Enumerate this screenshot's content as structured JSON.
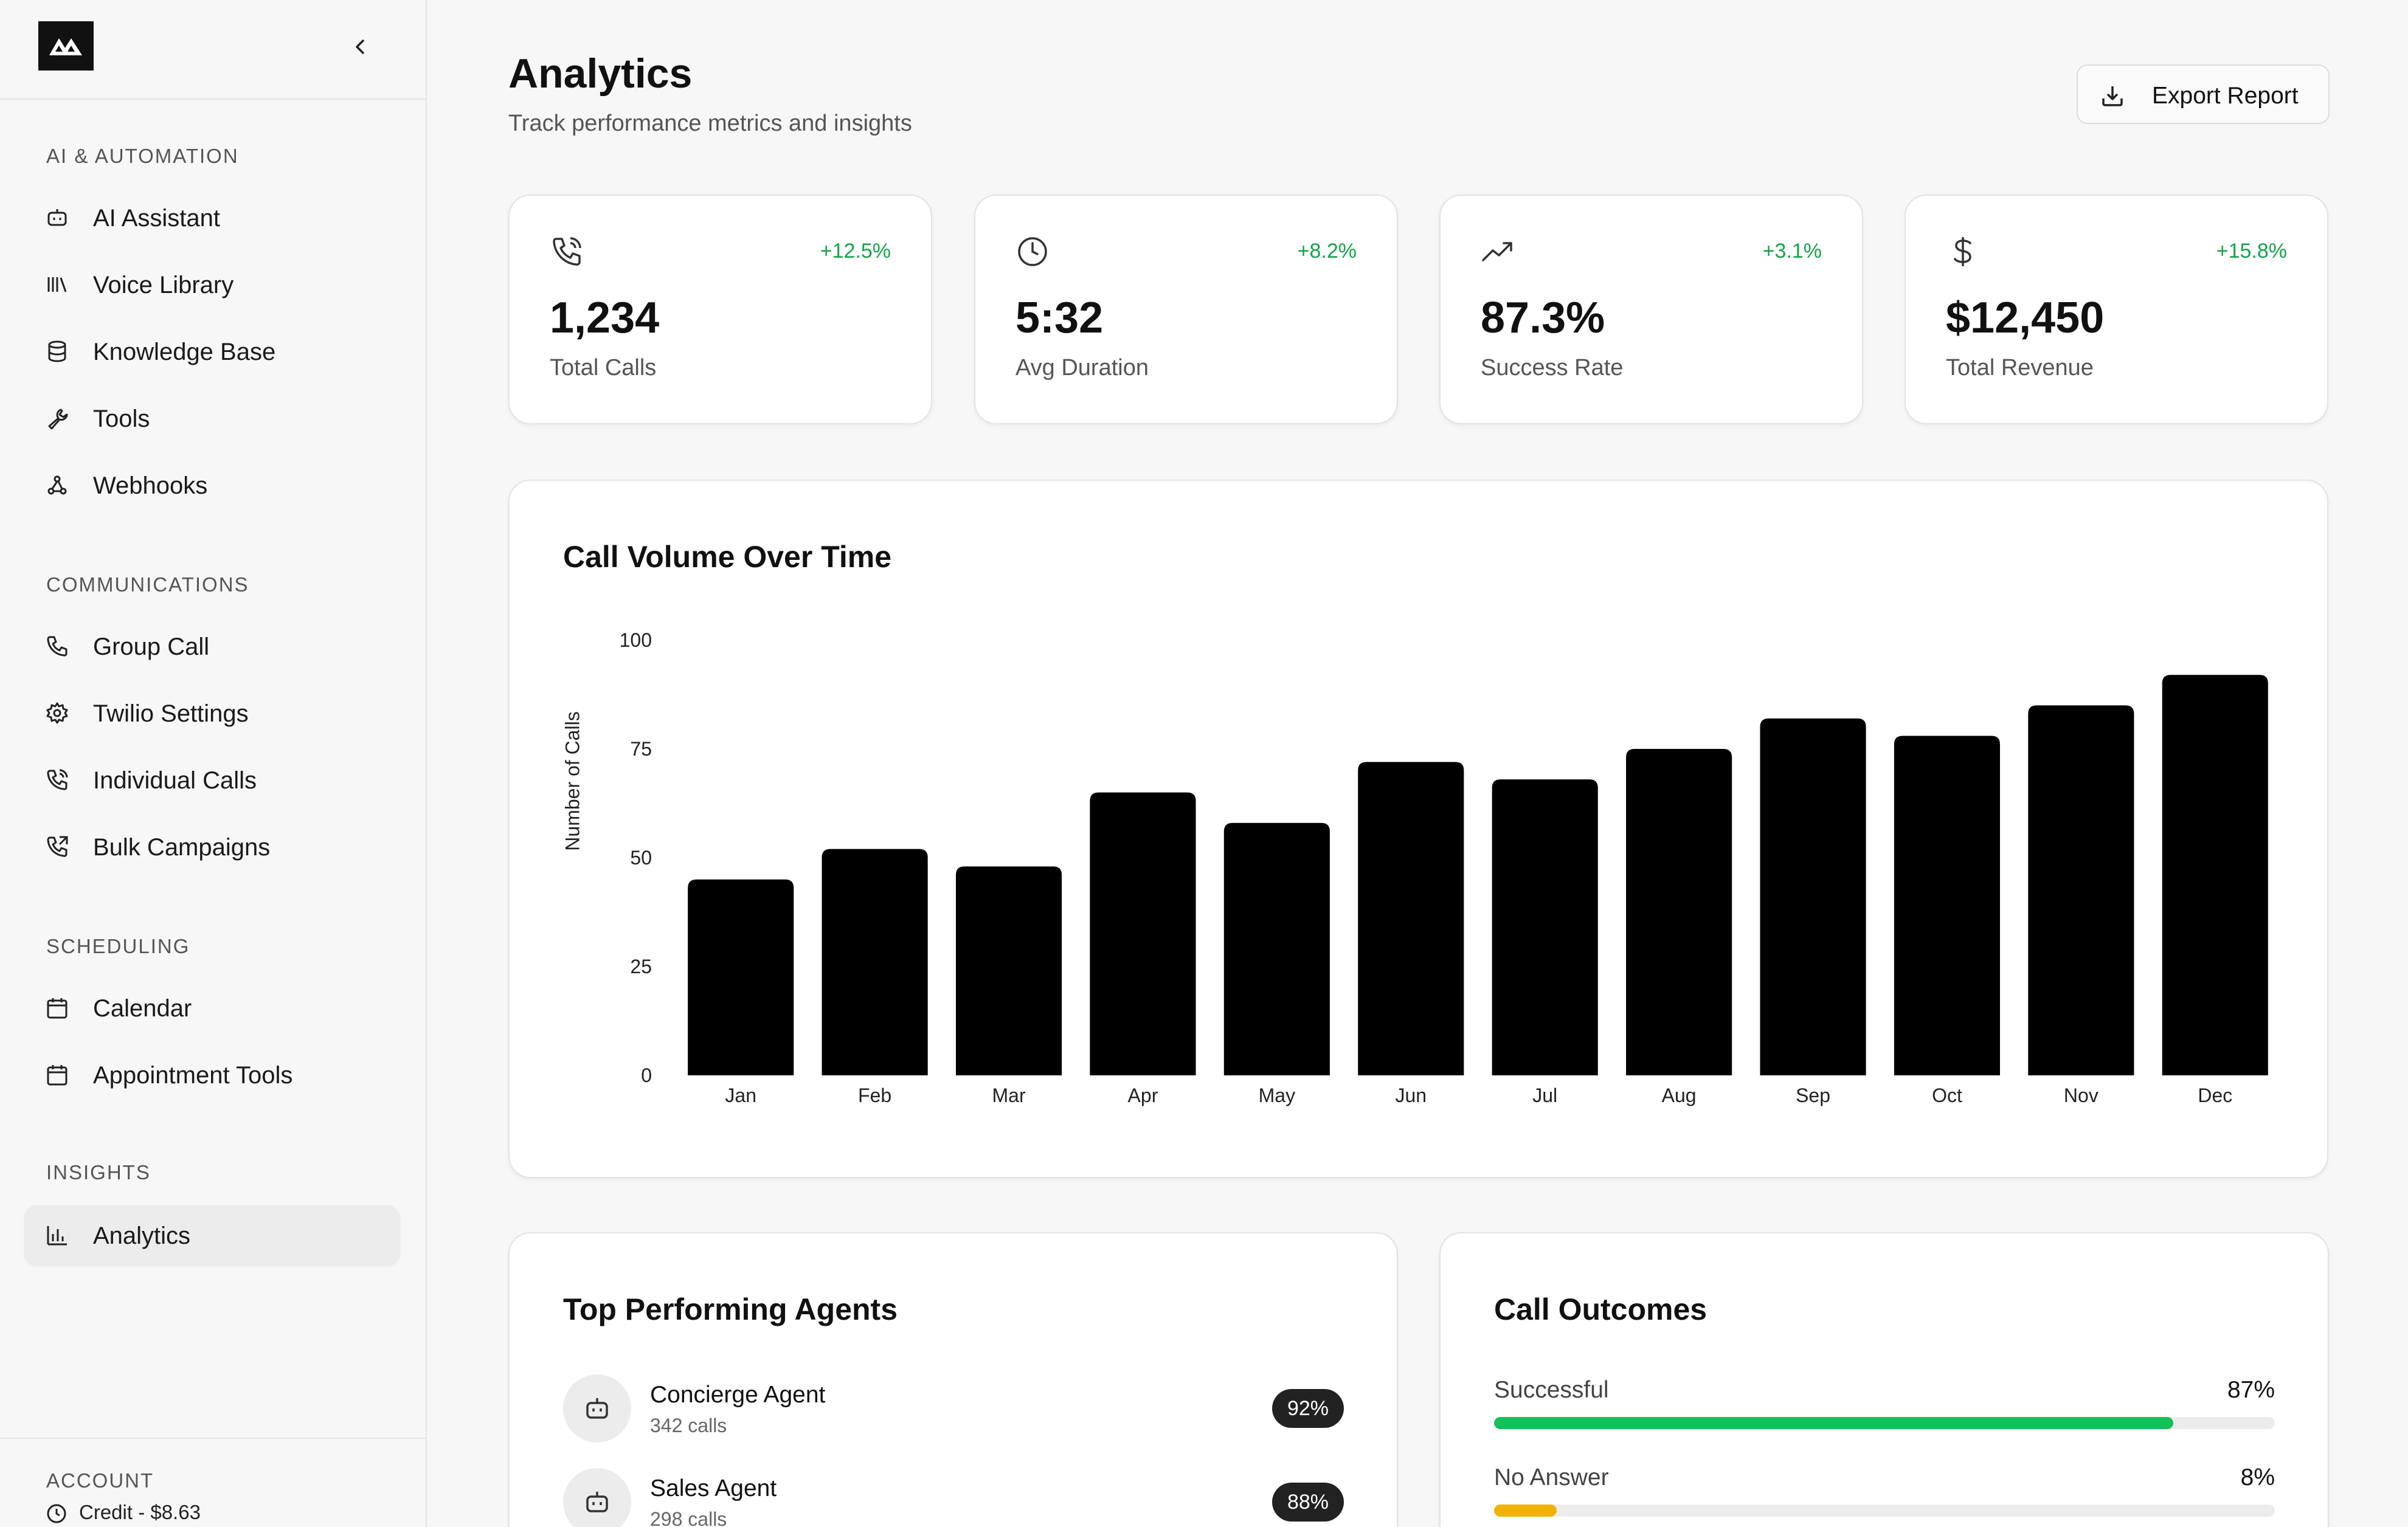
{
  "sidebar": {
    "sections": [
      {
        "title": "AI & AUTOMATION",
        "items": [
          {
            "label": "AI Assistant",
            "icon": "bot-icon"
          },
          {
            "label": "Voice Library",
            "icon": "library-icon"
          },
          {
            "label": "Knowledge Base",
            "icon": "database-icon"
          },
          {
            "label": "Tools",
            "icon": "wrench-icon"
          },
          {
            "label": "Webhooks",
            "icon": "webhook-icon"
          }
        ]
      },
      {
        "title": "COMMUNICATIONS",
        "items": [
          {
            "label": "Group Call",
            "icon": "phone-icon"
          },
          {
            "label": "Twilio Settings",
            "icon": "gear-icon"
          },
          {
            "label": "Individual Calls",
            "icon": "phone-call-icon"
          },
          {
            "label": "Bulk Campaigns",
            "icon": "phone-forward-icon"
          }
        ]
      },
      {
        "title": "SCHEDULING",
        "items": [
          {
            "label": "Calendar",
            "icon": "calendar-icon"
          },
          {
            "label": "Appointment Tools",
            "icon": "calendar-icon"
          }
        ]
      },
      {
        "title": "INSIGHTS",
        "items": [
          {
            "label": "Analytics",
            "icon": "bar-chart-icon",
            "active": true
          }
        ]
      }
    ],
    "account": {
      "title": "ACCOUNT",
      "credit": "Credit - $8.63"
    }
  },
  "header": {
    "title": "Analytics",
    "subtitle": "Track performance metrics and insights",
    "export_label": "Export Report"
  },
  "stats": [
    {
      "value": "1,234",
      "label": "Total Calls",
      "delta": "+12.5%",
      "icon": "phone-call-icon"
    },
    {
      "value": "5:32",
      "label": "Avg Duration",
      "delta": "+8.2%",
      "icon": "clock-icon"
    },
    {
      "value": "87.3%",
      "label": "Success Rate",
      "delta": "+3.1%",
      "icon": "trending-up-icon"
    },
    {
      "value": "$12,450",
      "label": "Total Revenue",
      "delta": "+15.8%",
      "icon": "dollar-icon"
    }
  ],
  "chart_data": {
    "type": "bar",
    "title": "Call Volume Over Time",
    "xlabel": "",
    "ylabel": "Number of Calls",
    "categories": [
      "Jan",
      "Feb",
      "Mar",
      "Apr",
      "May",
      "Jun",
      "Jul",
      "Aug",
      "Sep",
      "Oct",
      "Nov",
      "Dec"
    ],
    "values": [
      45,
      52,
      48,
      65,
      58,
      72,
      68,
      75,
      82,
      78,
      85,
      92
    ],
    "ylim": [
      0,
      100
    ],
    "yticks": [
      0,
      25,
      50,
      75,
      100
    ],
    "grid": false,
    "bar_color": "#000000"
  },
  "agents": {
    "title": "Top Performing Agents",
    "items": [
      {
        "name": "Concierge Agent",
        "calls": "342 calls",
        "score": "92%"
      },
      {
        "name": "Sales Agent",
        "calls": "298 calls",
        "score": "88%"
      }
    ]
  },
  "outcomes": {
    "title": "Call Outcomes",
    "items": [
      {
        "label": "Successful",
        "pct": "87%",
        "fraction": 0.87,
        "color": "#16c05a"
      },
      {
        "label": "No Answer",
        "pct": "8%",
        "fraction": 0.08,
        "color": "#f0b400"
      }
    ]
  }
}
